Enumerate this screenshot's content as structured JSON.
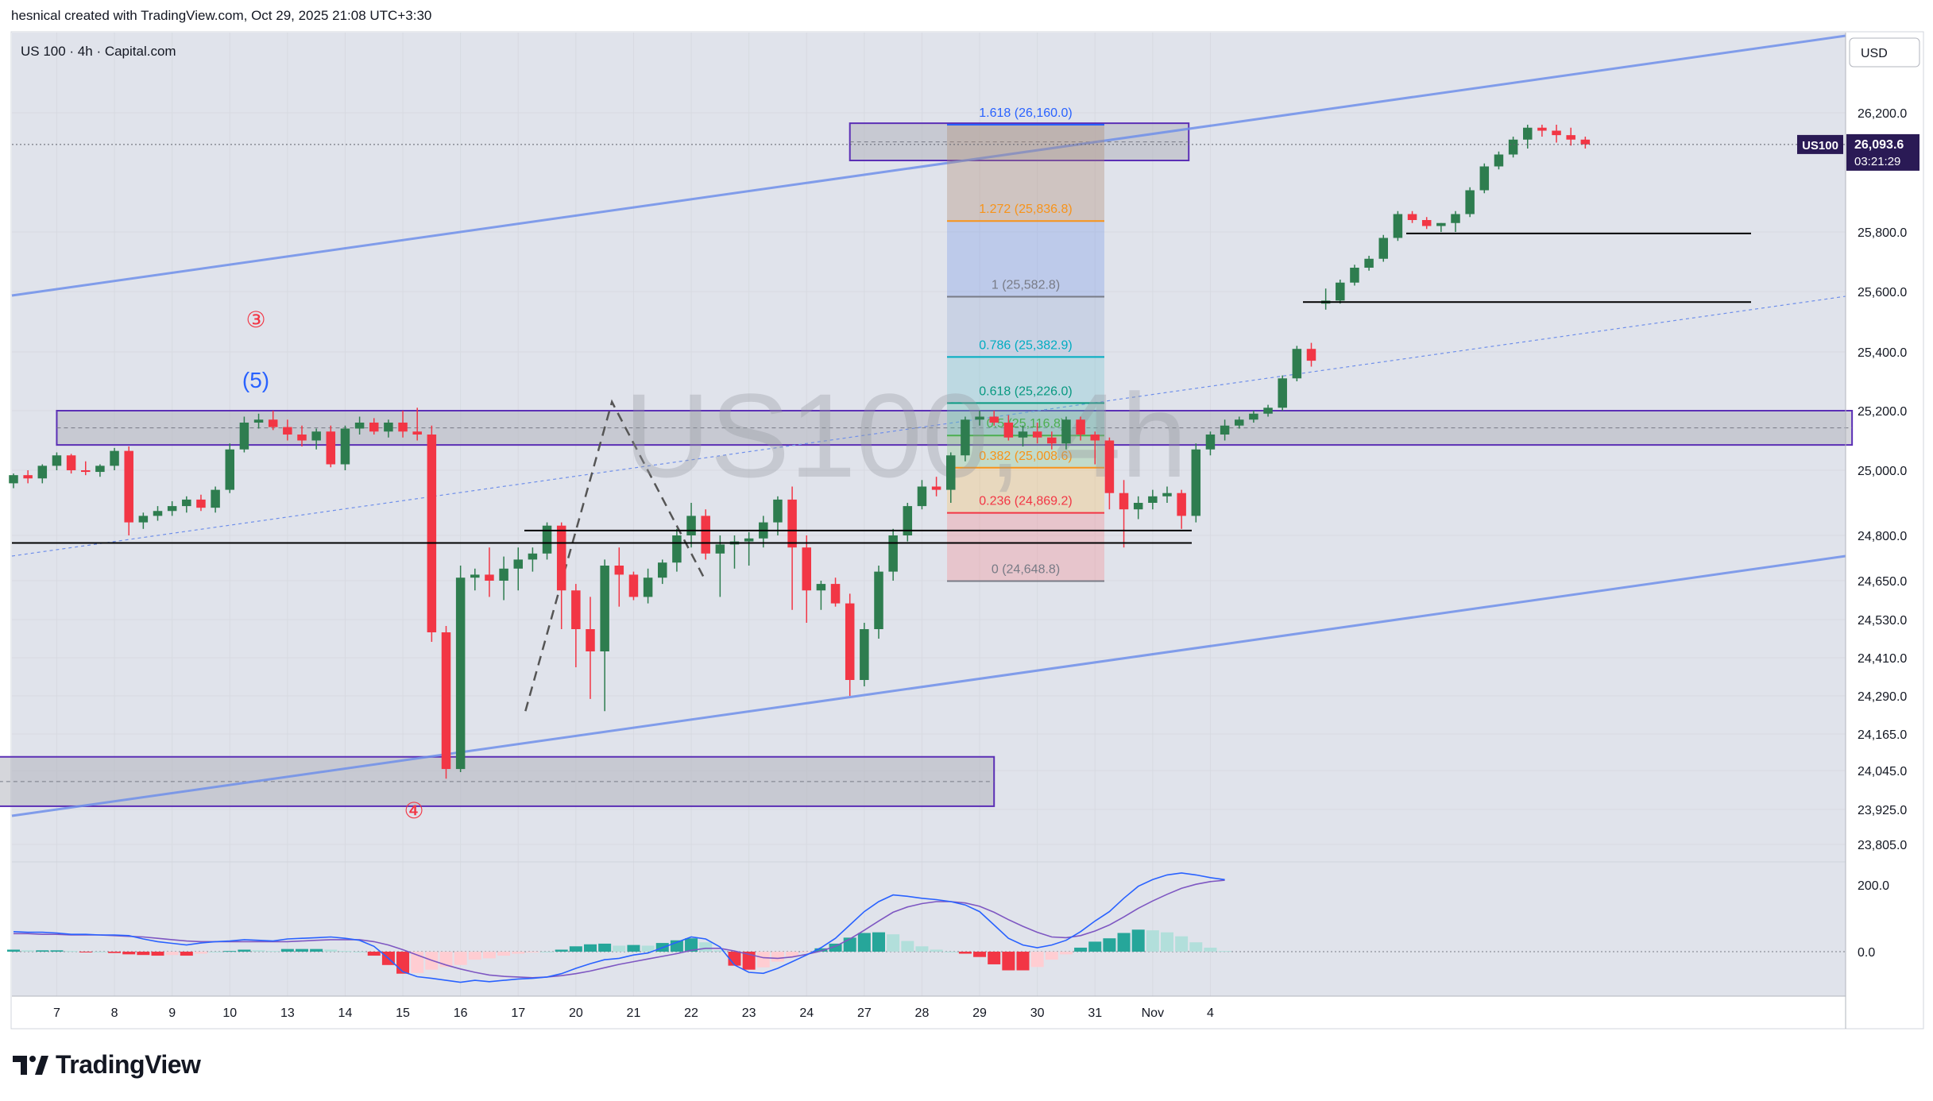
{
  "header": {
    "text": "hesnical created with TradingView.com, Oct 29, 2025 21:08 UTC+3:30"
  },
  "footer": {
    "brand": "TradingView"
  },
  "colors": {
    "up": "#2e7d4f",
    "down": "#f23645",
    "channel": "#6f8fea",
    "zone_border": "#5b2fb5",
    "macd_line": "#2962ff",
    "signal_line": "#7e57c2",
    "hist_up_strong": "#26a69a",
    "hist_up_weak": "#b2dfdb",
    "hist_down_strong": "#f23645",
    "hist_down_weak": "#ffcdd2",
    "plot_bg": "#e0e3eb"
  },
  "chart_data": {
    "type": "candlestick",
    "title": "US 100 · 4h · Capital.com",
    "watermark": "US100, 4h",
    "symbol": "US100",
    "currency": "USD",
    "last_price": "26,093.6",
    "countdown": "03:21:29",
    "ylim": [
      23700,
      26400
    ],
    "price_ticks": [
      "26,200.0",
      "25,800.0",
      "25,600.0",
      "25,400.0",
      "25,200.0",
      "25,000.0",
      "24,800.0",
      "24,650.0",
      "24,530.0",
      "24,410.0",
      "24,290.0",
      "24,165.0",
      "24,045.0",
      "23,925.0",
      "23,805.0"
    ],
    "macd_ticks": [
      "200.0",
      "0.0"
    ],
    "x_labels": [
      "7",
      "8",
      "9",
      "10",
      "13",
      "14",
      "15",
      "16",
      "17",
      "20",
      "21",
      "22",
      "23",
      "24",
      "27",
      "28",
      "29",
      "30",
      "31",
      "Nov",
      "4"
    ],
    "candles": [
      [
        24960,
        24990,
        24945,
        24985
      ],
      [
        24985,
        25000,
        24960,
        24975
      ],
      [
        24975,
        25020,
        24960,
        25015
      ],
      [
        25015,
        25060,
        25000,
        25050
      ],
      [
        25050,
        25055,
        24990,
        25000
      ],
      [
        25000,
        25030,
        24985,
        24995
      ],
      [
        24995,
        25020,
        24980,
        25015
      ],
      [
        25015,
        25075,
        25000,
        25065
      ],
      [
        25065,
        25080,
        24800,
        24840
      ],
      [
        24840,
        24870,
        24820,
        24860
      ],
      [
        24860,
        24890,
        24845,
        24875
      ],
      [
        24875,
        24905,
        24860,
        24890
      ],
      [
        24890,
        24920,
        24870,
        24910
      ],
      [
        24910,
        24925,
        24875,
        24885
      ],
      [
        24885,
        24950,
        24870,
        24940
      ],
      [
        24940,
        25090,
        24930,
        25070
      ],
      [
        25070,
        25180,
        25060,
        25160
      ],
      [
        25160,
        25190,
        25140,
        25170
      ],
      [
        25170,
        25200,
        25135,
        25145
      ],
      [
        25145,
        25170,
        25100,
        25120
      ],
      [
        25120,
        25150,
        25080,
        25100
      ],
      [
        25100,
        25140,
        25070,
        25130
      ],
      [
        25130,
        25150,
        25010,
        25020
      ],
      [
        25020,
        25150,
        25000,
        25140
      ],
      [
        25140,
        25180,
        25120,
        25160
      ],
      [
        25160,
        25175,
        25120,
        25130
      ],
      [
        25130,
        25170,
        25110,
        25160
      ],
      [
        25160,
        25200,
        25110,
        25130
      ],
      [
        25130,
        25210,
        25100,
        25120
      ],
      [
        25120,
        25150,
        24460,
        24490
      ],
      [
        24490,
        24510,
        24020,
        24050
      ],
      [
        24050,
        24700,
        24040,
        24660
      ],
      [
        24660,
        24690,
        24620,
        24670
      ],
      [
        24670,
        24760,
        24600,
        24650
      ],
      [
        24650,
        24730,
        24590,
        24690
      ],
      [
        24690,
        24760,
        24620,
        24720
      ],
      [
        24720,
        24760,
        24680,
        24740
      ],
      [
        24740,
        24840,
        24720,
        24830
      ],
      [
        24830,
        24840,
        24500,
        24620
      ],
      [
        24620,
        24640,
        24380,
        24500
      ],
      [
        24500,
        24600,
        24280,
        24430
      ],
      [
        24430,
        24720,
        24240,
        24700
      ],
      [
        24700,
        24760,
        24570,
        24670
      ],
      [
        24670,
        24680,
        24590,
        24600
      ],
      [
        24600,
        24690,
        24580,
        24660
      ],
      [
        24660,
        24720,
        24640,
        24710
      ],
      [
        24710,
        24820,
        24680,
        24800
      ],
      [
        24800,
        24900,
        24760,
        24860
      ],
      [
        24860,
        24880,
        24720,
        24740
      ],
      [
        24740,
        24800,
        24600,
        24770
      ],
      [
        24770,
        24800,
        24690,
        24780
      ],
      [
        24780,
        24810,
        24700,
        24790
      ],
      [
        24790,
        24860,
        24760,
        24840
      ],
      [
        24840,
        24920,
        24800,
        24910
      ],
      [
        24910,
        24950,
        24560,
        24760
      ],
      [
        24760,
        24800,
        24520,
        24620
      ],
      [
        24620,
        24650,
        24560,
        24640
      ],
      [
        24640,
        24660,
        24570,
        24580
      ],
      [
        24580,
        24610,
        24290,
        24340
      ],
      [
        24340,
        24520,
        24320,
        24500
      ],
      [
        24500,
        24700,
        24470,
        24680
      ],
      [
        24680,
        24820,
        24650,
        24800
      ],
      [
        24800,
        24900,
        24780,
        24890
      ],
      [
        24890,
        24970,
        24880,
        24950
      ],
      [
        24950,
        24980,
        24920,
        24940
      ],
      [
        24940,
        25060,
        24900,
        25050
      ],
      [
        25050,
        25180,
        25030,
        25170
      ],
      [
        25170,
        25200,
        25150,
        25180
      ],
      [
        25180,
        25200,
        25150,
        25160
      ],
      [
        25160,
        25185,
        25100,
        25110
      ],
      [
        25110,
        25150,
        25080,
        25130
      ],
      [
        25130,
        25160,
        25090,
        25110
      ],
      [
        25110,
        25130,
        25070,
        25090
      ],
      [
        25090,
        25180,
        25070,
        25170
      ],
      [
        25170,
        25180,
        25100,
        25120
      ],
      [
        25120,
        25130,
        25020,
        25100
      ],
      [
        25100,
        25110,
        24880,
        24930
      ],
      [
        24930,
        24970,
        24760,
        24880
      ],
      [
        24880,
        24920,
        24850,
        24900
      ],
      [
        24900,
        24940,
        24880,
        24920
      ],
      [
        24920,
        24950,
        24900,
        24930
      ],
      [
        24930,
        24940,
        24820,
        24860
      ],
      [
        24860,
        25090,
        24840,
        25070
      ],
      [
        25070,
        25130,
        25050,
        25120
      ],
      [
        25120,
        25170,
        25100,
        25150
      ],
      [
        25150,
        25180,
        25140,
        25170
      ],
      [
        25170,
        25200,
        25160,
        25190
      ],
      [
        25190,
        25220,
        25180,
        25210
      ],
      [
        25210,
        25320,
        25200,
        25310
      ],
      [
        25310,
        25420,
        25300,
        25410
      ],
      [
        25410,
        25430,
        25350,
        25370
      ],
      [
        25560,
        25610,
        25540,
        25570
      ],
      [
        25570,
        25640,
        25560,
        25630
      ],
      [
        25630,
        25690,
        25620,
        25680
      ],
      [
        25680,
        25720,
        25670,
        25710
      ],
      [
        25710,
        25790,
        25700,
        25780
      ],
      [
        25780,
        25870,
        25770,
        25860
      ],
      [
        25860,
        25870,
        25830,
        25840
      ],
      [
        25840,
        25850,
        25810,
        25820
      ],
      [
        25820,
        25830,
        25800,
        25830
      ],
      [
        25830,
        25870,
        25800,
        25860
      ],
      [
        25860,
        25950,
        25850,
        25940
      ],
      [
        25940,
        26030,
        25930,
        26020
      ],
      [
        26020,
        26070,
        26010,
        26060
      ],
      [
        26060,
        26120,
        26050,
        26110
      ],
      [
        26110,
        26160,
        26080,
        26150
      ],
      [
        26150,
        26160,
        26120,
        26140
      ],
      [
        26140,
        26160,
        26100,
        26125
      ],
      [
        26125,
        26150,
        26090,
        26110
      ],
      [
        26110,
        26120,
        26080,
        26094
      ]
    ],
    "fibonacci": [
      {
        "label": "1.618 (26,160.0)",
        "price": 26160.0,
        "color": "#2962ff"
      },
      {
        "label": "1.272 (25,836.8)",
        "price": 25836.8,
        "color": "#f7931a"
      },
      {
        "label": "1 (25,582.8)",
        "price": 25582.8,
        "color": "#787b86"
      },
      {
        "label": "0.786 (25,382.9)",
        "price": 25382.9,
        "color": "#00acc1"
      },
      {
        "label": "0.618 (25,226.0)",
        "price": 25226.0,
        "color": "#089981"
      },
      {
        "label": "0.5 (25,116.8)",
        "price": 25116.8,
        "color": "#4caf50"
      },
      {
        "label": "0.382 (25,008.6)",
        "price": 25008.6,
        "color": "#f7931a"
      },
      {
        "label": "0.236 (24,869.2)",
        "price": 24869.2,
        "color": "#f23645"
      },
      {
        "label": "0 (24,648.8)",
        "price": 24648.8,
        "color": "#787b86"
      }
    ],
    "wave_labels": [
      {
        "text": "③",
        "color": "#f23645"
      },
      {
        "text": "(5)",
        "color": "#2962ff"
      },
      {
        "text": "④",
        "color": "#f23645"
      }
    ],
    "macd": {
      "macd": [
        60,
        58,
        58,
        56,
        52,
        52,
        50,
        50,
        48,
        38,
        30,
        25,
        20,
        26,
        30,
        32,
        36,
        34,
        32,
        38,
        40,
        42,
        44,
        40,
        34,
        16,
        -20,
        -60,
        -75,
        -80,
        -86,
        -92,
        -86,
        -90,
        -86,
        -82,
        -80,
        -76,
        -66,
        -50,
        -36,
        -24,
        -20,
        -10,
        -4,
        12,
        28,
        44,
        38,
        14,
        -40,
        -62,
        -65,
        -50,
        -30,
        -10,
        12,
        40,
        80,
        120,
        150,
        170,
        166,
        160,
        156,
        150,
        140,
        120,
        80,
        40,
        20,
        12,
        20,
        34,
        60,
        92,
        120,
        160,
        196,
        216,
        230,
        236,
        230,
        222,
        216
      ],
      "signal": [
        54,
        54,
        52,
        52,
        50,
        50,
        50,
        48,
        46,
        44,
        40,
        36,
        32,
        30,
        30,
        30,
        30,
        30,
        30,
        30,
        32,
        34,
        36,
        36,
        36,
        30,
        20,
        6,
        -10,
        -26,
        -40,
        -52,
        -62,
        -70,
        -74,
        -76,
        -78,
        -76,
        -72,
        -66,
        -58,
        -48,
        -38,
        -30,
        -22,
        -14,
        -6,
        4,
        10,
        10,
        2,
        -8,
        -18,
        -20,
        -16,
        -8,
        2,
        16,
        38,
        64,
        92,
        118,
        134,
        144,
        150,
        150,
        146,
        136,
        118,
        96,
        76,
        58,
        44,
        42,
        48,
        62,
        80,
        104,
        130,
        152,
        172,
        190,
        202,
        210,
        214
      ],
      "histogram": [
        6,
        4,
        4,
        4,
        2,
        -2,
        0,
        -4,
        -8,
        -10,
        -12,
        -10,
        -12,
        -6,
        0,
        2,
        6,
        4,
        2,
        8,
        8,
        8,
        6,
        2,
        0,
        -12,
        -40,
        -66,
        -64,
        -54,
        -46,
        -40,
        -24,
        -20,
        -12,
        -6,
        -2,
        0,
        6,
        16,
        22,
        24,
        18,
        20,
        18,
        26,
        34,
        40,
        28,
        4,
        -42,
        -54,
        -47,
        -30,
        -14,
        -2,
        10,
        24,
        42,
        56,
        58,
        52,
        32,
        16,
        6,
        0,
        -6,
        -16,
        -38,
        -56,
        -56,
        -46,
        -24,
        -8,
        12,
        30,
        40,
        56,
        66,
        64,
        58,
        46,
        28,
        12,
        2
      ]
    }
  }
}
